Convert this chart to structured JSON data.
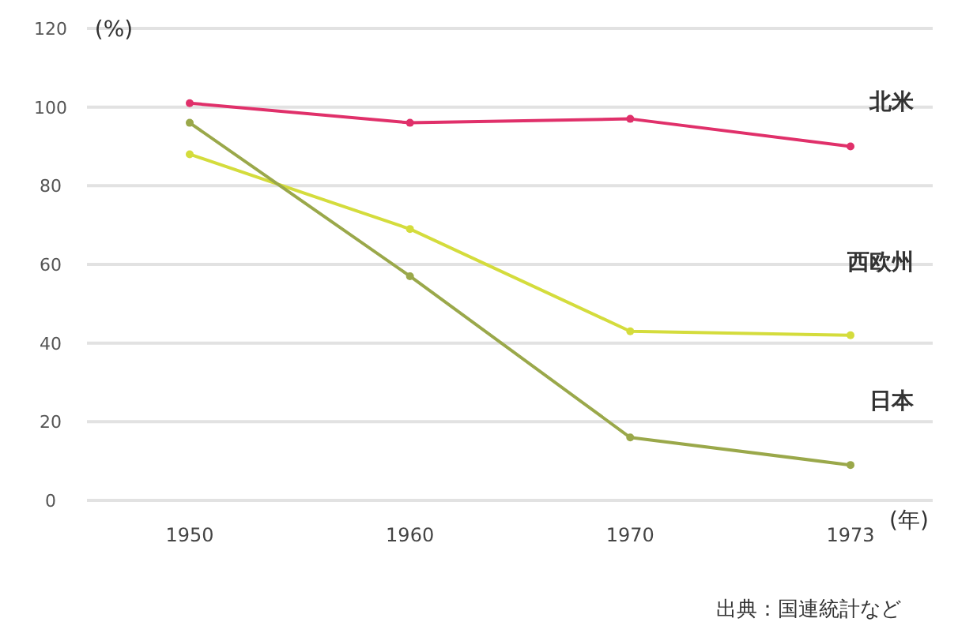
{
  "chart_data": {
    "type": "line",
    "ylabel": "(%)",
    "xlabel": "(年)",
    "categories": [
      "1950",
      "1960",
      "1970",
      "1973"
    ],
    "series": [
      {
        "name": "北米",
        "color": "#e0306a",
        "values": [
          101,
          96,
          97,
          90
        ]
      },
      {
        "name": "西欧州",
        "color": "#d4dc3c",
        "values": [
          88,
          69,
          43,
          42
        ]
      },
      {
        "name": "日本",
        "color": "#9aa84a",
        "values": [
          96,
          57,
          16,
          9
        ]
      }
    ],
    "ylim": [
      0,
      120
    ],
    "yticks": [
      0,
      20,
      40,
      60,
      80,
      100,
      120
    ],
    "grid": "y",
    "marker": "circle",
    "line_style": "solid",
    "annotations": [
      "出典：国連統計など"
    ]
  }
}
